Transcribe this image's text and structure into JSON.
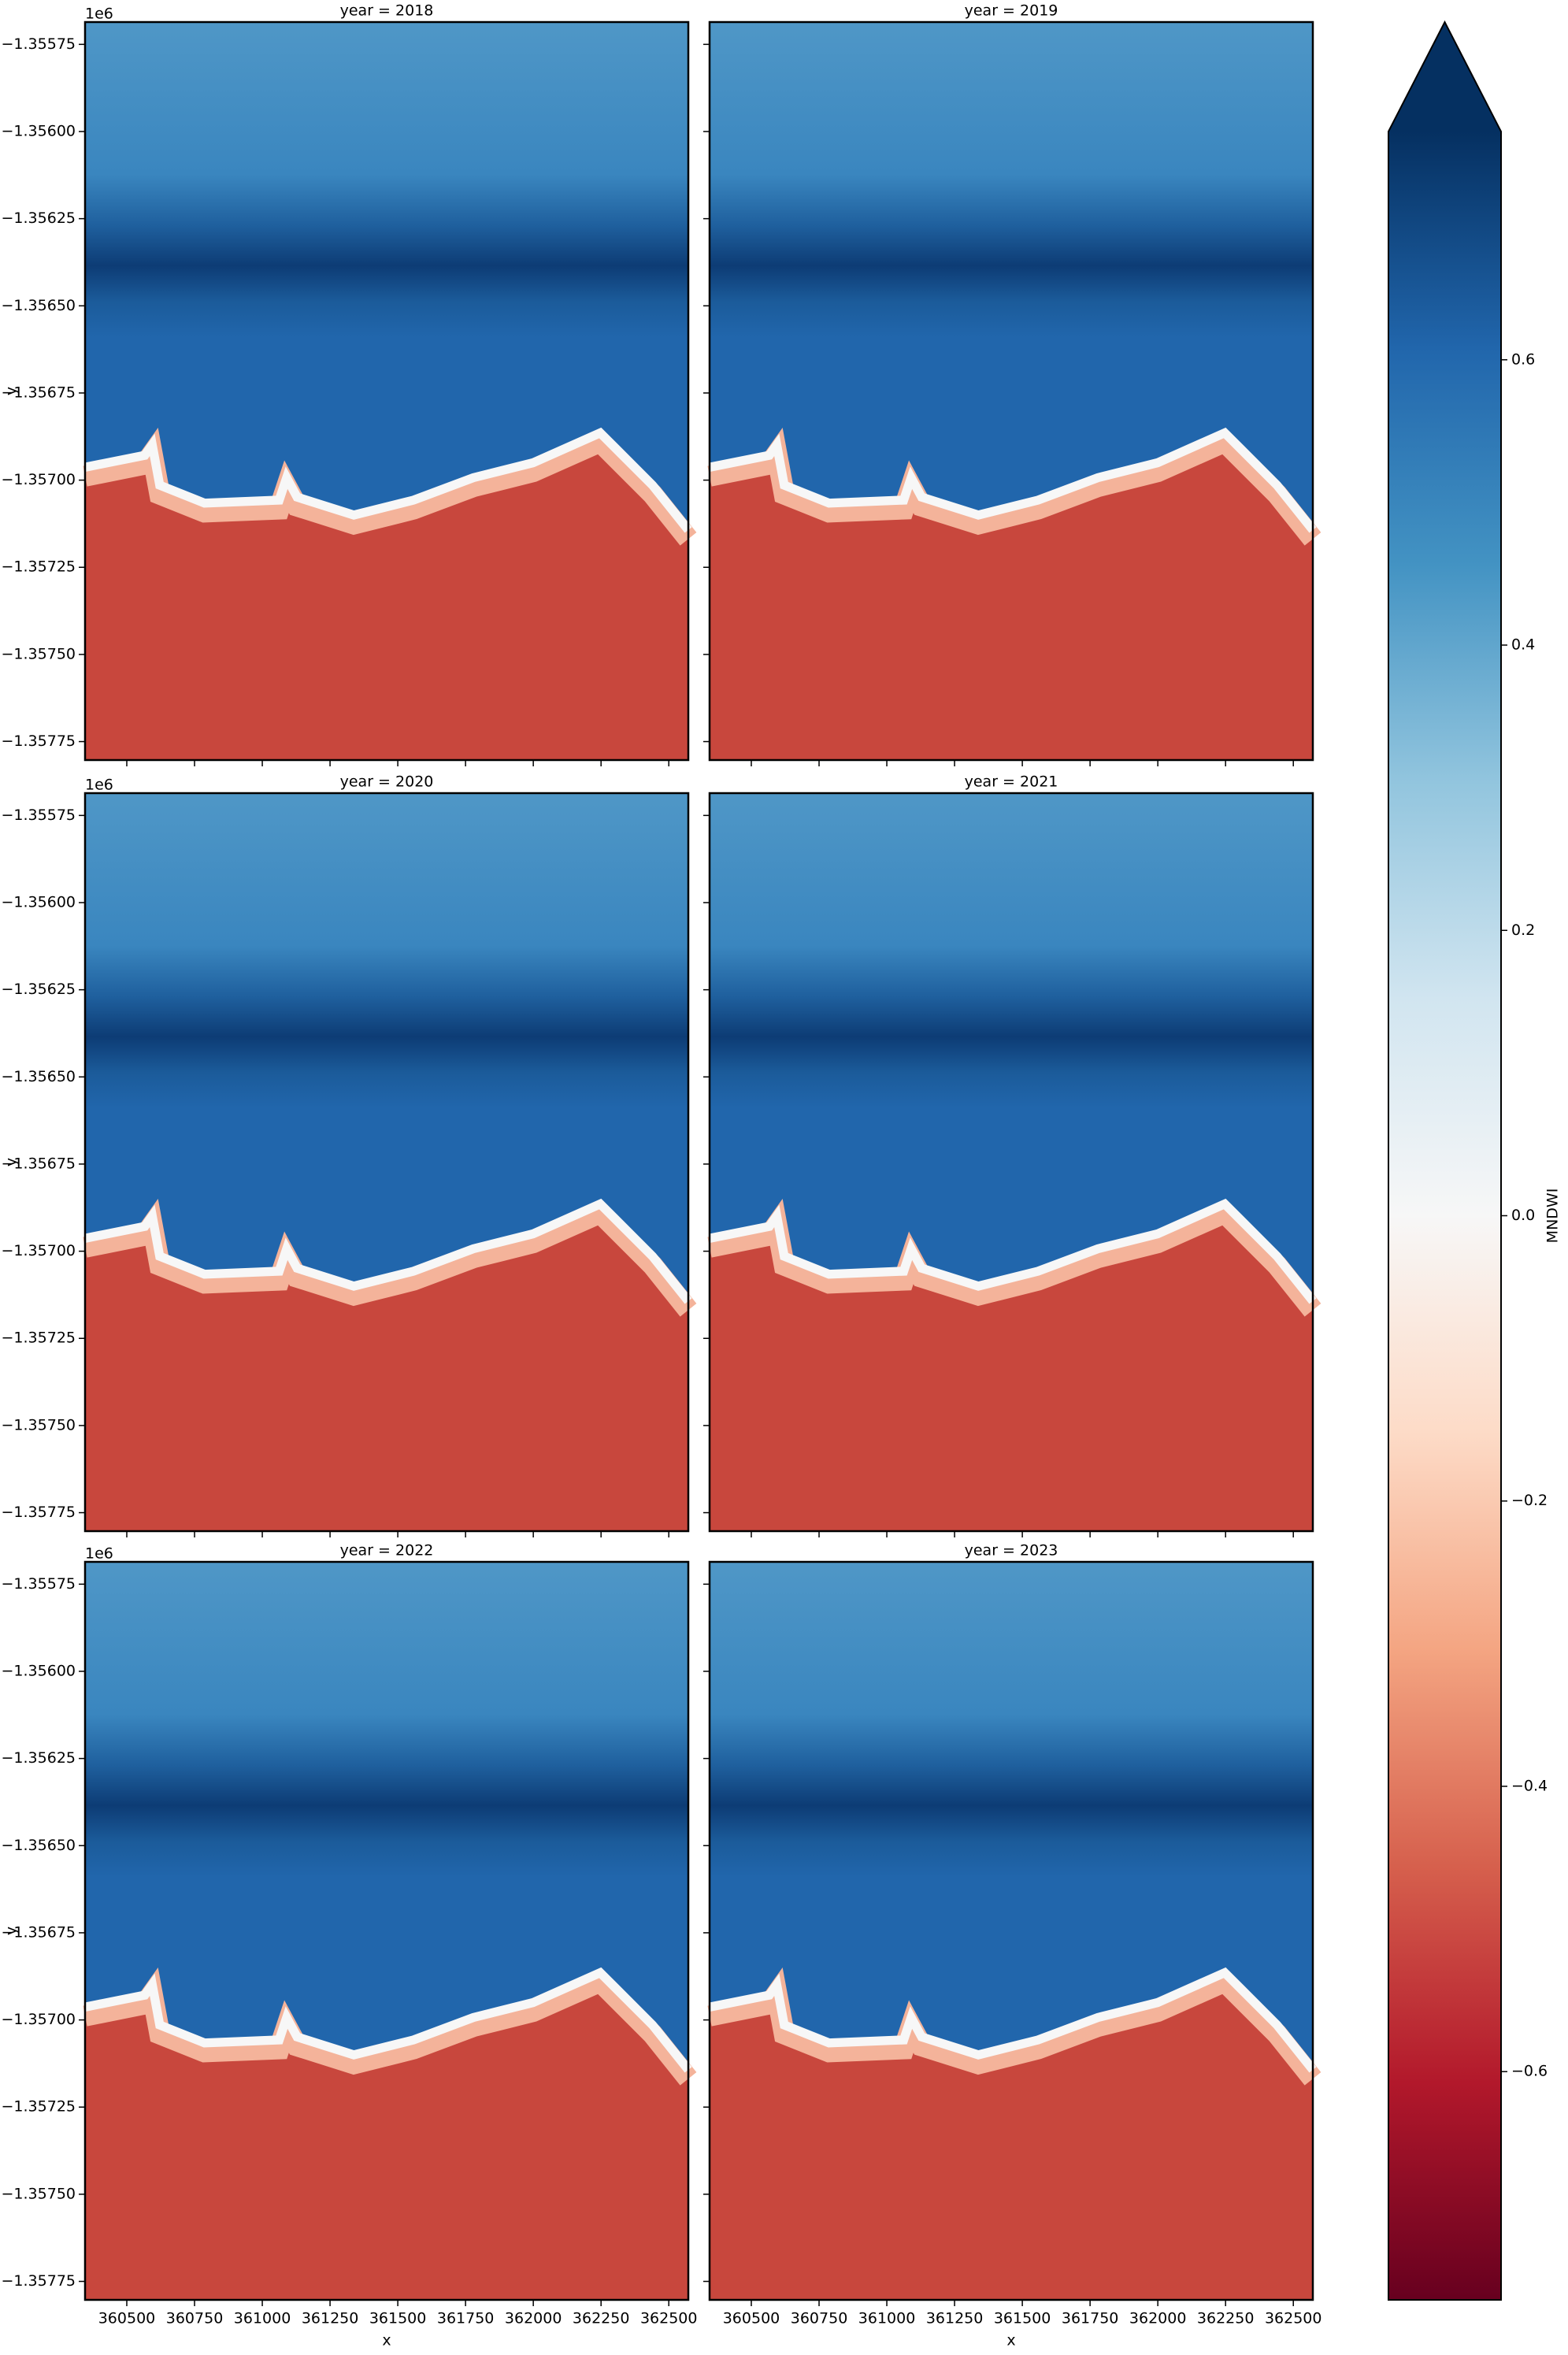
{
  "chart_data": {
    "type": "image",
    "panels": [
      {
        "title": "year = 2018"
      },
      {
        "title": "year = 2019"
      },
      {
        "title": "year = 2020"
      },
      {
        "title": "year = 2021"
      },
      {
        "title": "year = 2022"
      },
      {
        "title": "year = 2023"
      }
    ],
    "xlabel": "x",
    "ylabel": "y",
    "y_offset_text": "1e6",
    "xlim": [
      360346,
      362572
    ],
    "xticks": [
      360500,
      360750,
      361000,
      361250,
      361500,
      361750,
      362000,
      362250,
      362500
    ],
    "ylim": [
      -1357803,
      -1355686
    ],
    "yticks": [
      {
        "value": -1355750,
        "label": "−1.35575"
      },
      {
        "value": -1356000,
        "label": "−1.35600"
      },
      {
        "value": -1356250,
        "label": "−1.35625"
      },
      {
        "value": -1356500,
        "label": "−1.35650"
      },
      {
        "value": -1356750,
        "label": "−1.35675"
      },
      {
        "value": -1357000,
        "label": "−1.35700"
      },
      {
        "value": -1357250,
        "label": "−1.35725"
      },
      {
        "value": -1357500,
        "label": "−1.35750"
      },
      {
        "value": -1357750,
        "label": "−1.35775"
      }
    ],
    "colorbar": {
      "label": "MNDWI",
      "cmap": "RdBu",
      "extend": "max",
      "vmin": -0.76,
      "vmax": 0.76,
      "ticks": [
        {
          "value": -0.6,
          "label": "−0.6"
        },
        {
          "value": -0.4,
          "label": "−0.4"
        },
        {
          "value": -0.2,
          "label": "−0.2"
        },
        {
          "value": 0,
          "label": "0.0"
        },
        0.2,
        0.4,
        0.6
      ]
    }
  }
}
